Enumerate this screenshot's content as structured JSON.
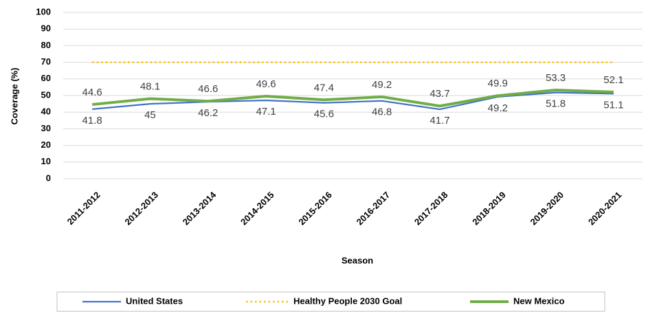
{
  "chart_data": {
    "type": "line",
    "x_label": "Season",
    "y_label": "Coverage (%)",
    "categories": [
      "2011-2012",
      "2012-2013",
      "2013-2014",
      "2014-2015",
      "2015-2016",
      "2016-2017",
      "2017-2018",
      "2018-2019",
      "2019-2020",
      "2020-2021"
    ],
    "series": [
      {
        "name": "United States",
        "color": "#4472c4",
        "style": "solid",
        "label_side": "below",
        "values": [
          41.8,
          45,
          46.2,
          47.1,
          45.6,
          46.8,
          41.7,
          49.2,
          51.8,
          51.1
        ]
      },
      {
        "name": "Healthy People 2030 Goal",
        "color": "#ffc000",
        "style": "dotted",
        "values": [
          70,
          70,
          70,
          70,
          70,
          70,
          70,
          70,
          70,
          70
        ]
      },
      {
        "name": "New Mexico",
        "color": "#70ad47",
        "style": "thick",
        "label_side": "above",
        "values": [
          44.6,
          48.1,
          46.6,
          49.6,
          47.4,
          49.2,
          43.7,
          49.9,
          53.3,
          52.1
        ]
      }
    ],
    "ylim": [
      0,
      100
    ],
    "yticks": [
      0,
      10,
      20,
      30,
      40,
      50,
      60,
      70,
      80,
      90,
      100
    ],
    "grid": true,
    "legend": "bottom"
  }
}
